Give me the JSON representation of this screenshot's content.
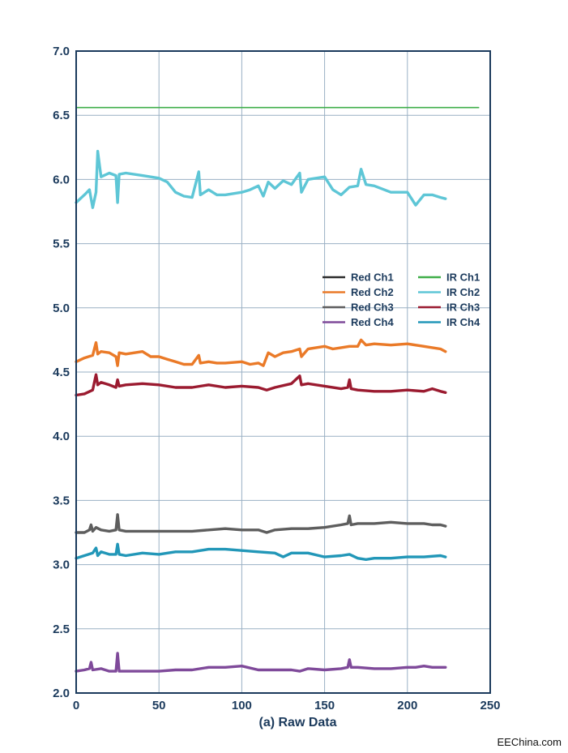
{
  "chart_data": {
    "type": "line",
    "xlabel": "(a) Raw Data",
    "ylabel": "",
    "xlim": [
      0,
      250
    ],
    "ylim": [
      2.0,
      7.0
    ],
    "xticks": [
      "0",
      "50",
      "100",
      "150",
      "200",
      "250"
    ],
    "yticks": [
      "2.0",
      "2.5",
      "3.0",
      "3.5",
      "4.0",
      "4.5",
      "5.0",
      "5.5",
      "6.0",
      "6.5",
      "7.0"
    ],
    "grid": true,
    "legend_position": "right",
    "series": [
      {
        "name": "Red Ch1",
        "color": "#2b2b2b",
        "x": [],
        "y": []
      },
      {
        "name": "Red Ch2",
        "color": "#ea7a28",
        "x": [
          0,
          5,
          10,
          12,
          13,
          15,
          20,
          24,
          25,
          26,
          30,
          40,
          45,
          50,
          55,
          60,
          65,
          70,
          74,
          75,
          80,
          85,
          90,
          100,
          105,
          110,
          113,
          116,
          120,
          125,
          130,
          135,
          136,
          140,
          150,
          155,
          160,
          165,
          170,
          172,
          175,
          180,
          190,
          200,
          210,
          215,
          220,
          223
        ],
        "y": [
          4.58,
          4.61,
          4.63,
          4.73,
          4.64,
          4.66,
          4.65,
          4.62,
          4.55,
          4.65,
          4.64,
          4.66,
          4.62,
          4.62,
          4.6,
          4.58,
          4.56,
          4.56,
          4.63,
          4.57,
          4.58,
          4.57,
          4.57,
          4.58,
          4.56,
          4.57,
          4.55,
          4.65,
          4.62,
          4.65,
          4.66,
          4.68,
          4.62,
          4.68,
          4.7,
          4.68,
          4.69,
          4.7,
          4.7,
          4.75,
          4.71,
          4.72,
          4.71,
          4.72,
          4.7,
          4.69,
          4.68,
          4.66
        ]
      },
      {
        "name": "Red Ch3",
        "color": "#5e5e5e",
        "x": [
          0,
          5,
          8,
          9,
          10,
          12,
          15,
          20,
          24,
          25,
          26,
          30,
          40,
          50,
          60,
          70,
          80,
          90,
          100,
          110,
          115,
          120,
          130,
          140,
          150,
          160,
          164,
          165,
          166,
          170,
          180,
          190,
          200,
          210,
          215,
          220,
          223
        ],
        "y": [
          3.25,
          3.25,
          3.27,
          3.31,
          3.26,
          3.29,
          3.27,
          3.26,
          3.27,
          3.39,
          3.27,
          3.26,
          3.26,
          3.26,
          3.26,
          3.26,
          3.27,
          3.28,
          3.27,
          3.27,
          3.25,
          3.27,
          3.28,
          3.28,
          3.29,
          3.31,
          3.32,
          3.38,
          3.31,
          3.32,
          3.32,
          3.33,
          3.32,
          3.32,
          3.31,
          3.31,
          3.3
        ]
      },
      {
        "name": "Red Ch4",
        "color": "#7f4a9a",
        "x": [
          0,
          5,
          8,
          9,
          10,
          15,
          20,
          24,
          25,
          26,
          30,
          40,
          50,
          60,
          70,
          80,
          90,
          100,
          110,
          120,
          130,
          135,
          140,
          150,
          160,
          164,
          165,
          166,
          170,
          180,
          190,
          200,
          205,
          210,
          215,
          220,
          223
        ],
        "y": [
          2.17,
          2.18,
          2.19,
          2.24,
          2.18,
          2.19,
          2.17,
          2.17,
          2.31,
          2.17,
          2.17,
          2.17,
          2.17,
          2.18,
          2.18,
          2.2,
          2.2,
          2.21,
          2.18,
          2.18,
          2.18,
          2.17,
          2.19,
          2.18,
          2.19,
          2.2,
          2.26,
          2.2,
          2.2,
          2.19,
          2.19,
          2.2,
          2.2,
          2.21,
          2.2,
          2.2,
          2.2
        ]
      },
      {
        "name": "IR Ch1",
        "color": "#3fae49",
        "x": [
          0,
          243
        ],
        "y": [
          6.56,
          6.56
        ]
      },
      {
        "name": "IR Ch2",
        "color": "#5ec6d6",
        "x": [
          0,
          5,
          8,
          10,
          12,
          13,
          15,
          20,
          24,
          25,
          26,
          30,
          40,
          50,
          55,
          60,
          65,
          70,
          74,
          75,
          80,
          85,
          90,
          100,
          105,
          110,
          113,
          116,
          120,
          125,
          130,
          135,
          136,
          140,
          150,
          155,
          160,
          165,
          170,
          172,
          175,
          180,
          190,
          200,
          205,
          210,
          215,
          220,
          223
        ],
        "y": [
          5.82,
          5.88,
          5.92,
          5.78,
          5.9,
          6.22,
          6.02,
          6.05,
          6.03,
          5.82,
          6.04,
          6.05,
          6.03,
          6.01,
          5.98,
          5.9,
          5.87,
          5.86,
          6.06,
          5.88,
          5.92,
          5.88,
          5.88,
          5.9,
          5.92,
          5.95,
          5.87,
          5.98,
          5.93,
          5.99,
          5.96,
          6.05,
          5.9,
          6.0,
          6.02,
          5.92,
          5.88,
          5.94,
          5.95,
          6.08,
          5.96,
          5.95,
          5.9,
          5.9,
          5.8,
          5.88,
          5.88,
          5.86,
          5.85
        ]
      },
      {
        "name": "IR Ch3",
        "color": "#9b1b30",
        "x": [
          0,
          5,
          10,
          12,
          13,
          15,
          20,
          24,
          25,
          26,
          30,
          40,
          50,
          60,
          70,
          80,
          90,
          100,
          110,
          115,
          120,
          130,
          135,
          136,
          140,
          150,
          160,
          164,
          165,
          166,
          170,
          180,
          190,
          200,
          210,
          215,
          220,
          223
        ],
        "y": [
          4.32,
          4.33,
          4.36,
          4.48,
          4.4,
          4.42,
          4.4,
          4.38,
          4.44,
          4.39,
          4.4,
          4.41,
          4.4,
          4.38,
          4.38,
          4.4,
          4.38,
          4.39,
          4.38,
          4.36,
          4.38,
          4.41,
          4.47,
          4.4,
          4.41,
          4.39,
          4.37,
          4.38,
          4.44,
          4.37,
          4.36,
          4.35,
          4.35,
          4.36,
          4.35,
          4.37,
          4.35,
          4.34
        ]
      },
      {
        "name": "IR Ch4",
        "color": "#2297b8",
        "x": [
          0,
          5,
          10,
          12,
          13,
          15,
          20,
          24,
          25,
          26,
          30,
          40,
          50,
          60,
          70,
          80,
          90,
          100,
          110,
          120,
          125,
          130,
          140,
          150,
          160,
          165,
          170,
          175,
          180,
          190,
          200,
          210,
          220,
          223
        ],
        "y": [
          3.05,
          3.07,
          3.09,
          3.13,
          3.07,
          3.1,
          3.08,
          3.08,
          3.16,
          3.08,
          3.07,
          3.09,
          3.08,
          3.1,
          3.1,
          3.12,
          3.12,
          3.11,
          3.1,
          3.09,
          3.06,
          3.09,
          3.09,
          3.06,
          3.07,
          3.08,
          3.05,
          3.04,
          3.05,
          3.05,
          3.06,
          3.06,
          3.07,
          3.06
        ]
      }
    ]
  },
  "watermark": "EEChina.com"
}
